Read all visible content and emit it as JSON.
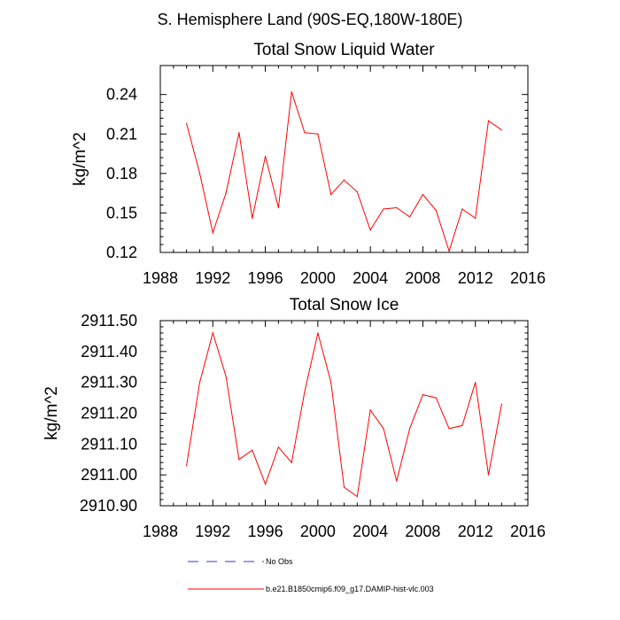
{
  "figure_title": "S. Hemisphere Land (90S-EQ,180W-180E)",
  "colors": {
    "model_line": "#ff0000",
    "obs_line": "#3333cc",
    "axis": "#000000"
  },
  "legend": [
    {
      "label": "No Obs",
      "style": "dashed",
      "color": "#3333cc"
    },
    {
      "label": "b.e21.B1850cmip6.f09_g17.DAMIP-hist-vlc.003",
      "style": "solid",
      "color": "#ff0000"
    }
  ],
  "chart_data": [
    {
      "type": "line",
      "title": "Total Snow Liquid Water",
      "xlabel": "",
      "ylabel": "kg/m^2",
      "xlim": [
        1988,
        2016
      ],
      "ylim": [
        0.12,
        0.262
      ],
      "x_ticks": [
        1988,
        1992,
        1996,
        2000,
        2004,
        2008,
        2012,
        2016
      ],
      "x_tick_labels": [
        "1988",
        "1992",
        "1996",
        "2000",
        "2004",
        "2008",
        "2012",
        "2016"
      ],
      "y_ticks": [
        0.12,
        0.15,
        0.18,
        0.21,
        0.24
      ],
      "y_tick_labels": [
        "0.12",
        "0.15",
        "0.18",
        "0.21",
        "0.24"
      ],
      "grid": false,
      "series": [
        {
          "name": "b.e21.B1850cmip6.f09_g17.DAMIP-hist-vlc.003",
          "x": [
            1990,
            1991,
            1992,
            1993,
            1994,
            1995,
            1996,
            1997,
            1998,
            1999,
            2000,
            2001,
            2002,
            2003,
            2004,
            2005,
            2006,
            2007,
            2008,
            2009,
            2010,
            2011,
            2012,
            2013,
            2014
          ],
          "values": [
            0.218,
            0.18,
            0.135,
            0.165,
            0.211,
            0.146,
            0.193,
            0.154,
            0.242,
            0.211,
            0.21,
            0.164,
            0.175,
            0.166,
            0.137,
            0.153,
            0.154,
            0.147,
            0.164,
            0.152,
            0.121,
            0.153,
            0.146,
            0.22,
            0.213
          ]
        }
      ]
    },
    {
      "type": "line",
      "title": "Total Snow Ice",
      "xlabel": "",
      "ylabel": "kg/m^2",
      "xlim": [
        1988,
        2016
      ],
      "ylim": [
        2910.9,
        2911.5
      ],
      "x_ticks": [
        1988,
        1992,
        1996,
        2000,
        2004,
        2008,
        2012,
        2016
      ],
      "x_tick_labels": [
        "1988",
        "1992",
        "1996",
        "2000",
        "2004",
        "2008",
        "2012",
        "2016"
      ],
      "y_ticks": [
        2910.9,
        2911.0,
        2911.1,
        2911.2,
        2911.3,
        2911.4,
        2911.5
      ],
      "y_tick_labels": [
        "2910.90",
        "2911.00",
        "2911.10",
        "2911.20",
        "2911.30",
        "2911.40",
        "2911.50"
      ],
      "grid": false,
      "series": [
        {
          "name": "b.e21.B1850cmip6.f09_g17.DAMIP-hist-vlc.003",
          "x": [
            1990,
            1991,
            1992,
            1993,
            1994,
            1995,
            1996,
            1997,
            1998,
            1999,
            2000,
            2001,
            2002,
            2003,
            2004,
            2005,
            2006,
            2007,
            2008,
            2009,
            2010,
            2011,
            2012,
            2013,
            2014
          ],
          "values": [
            2911.03,
            2911.3,
            2911.46,
            2911.32,
            2911.05,
            2911.08,
            2910.97,
            2911.09,
            2911.04,
            2911.27,
            2911.46,
            2911.3,
            2910.96,
            2910.93,
            2911.21,
            2911.15,
            2910.98,
            2911.15,
            2911.26,
            2911.25,
            2911.15,
            2911.16,
            2911.3,
            2911.0,
            2911.23
          ]
        }
      ]
    }
  ]
}
